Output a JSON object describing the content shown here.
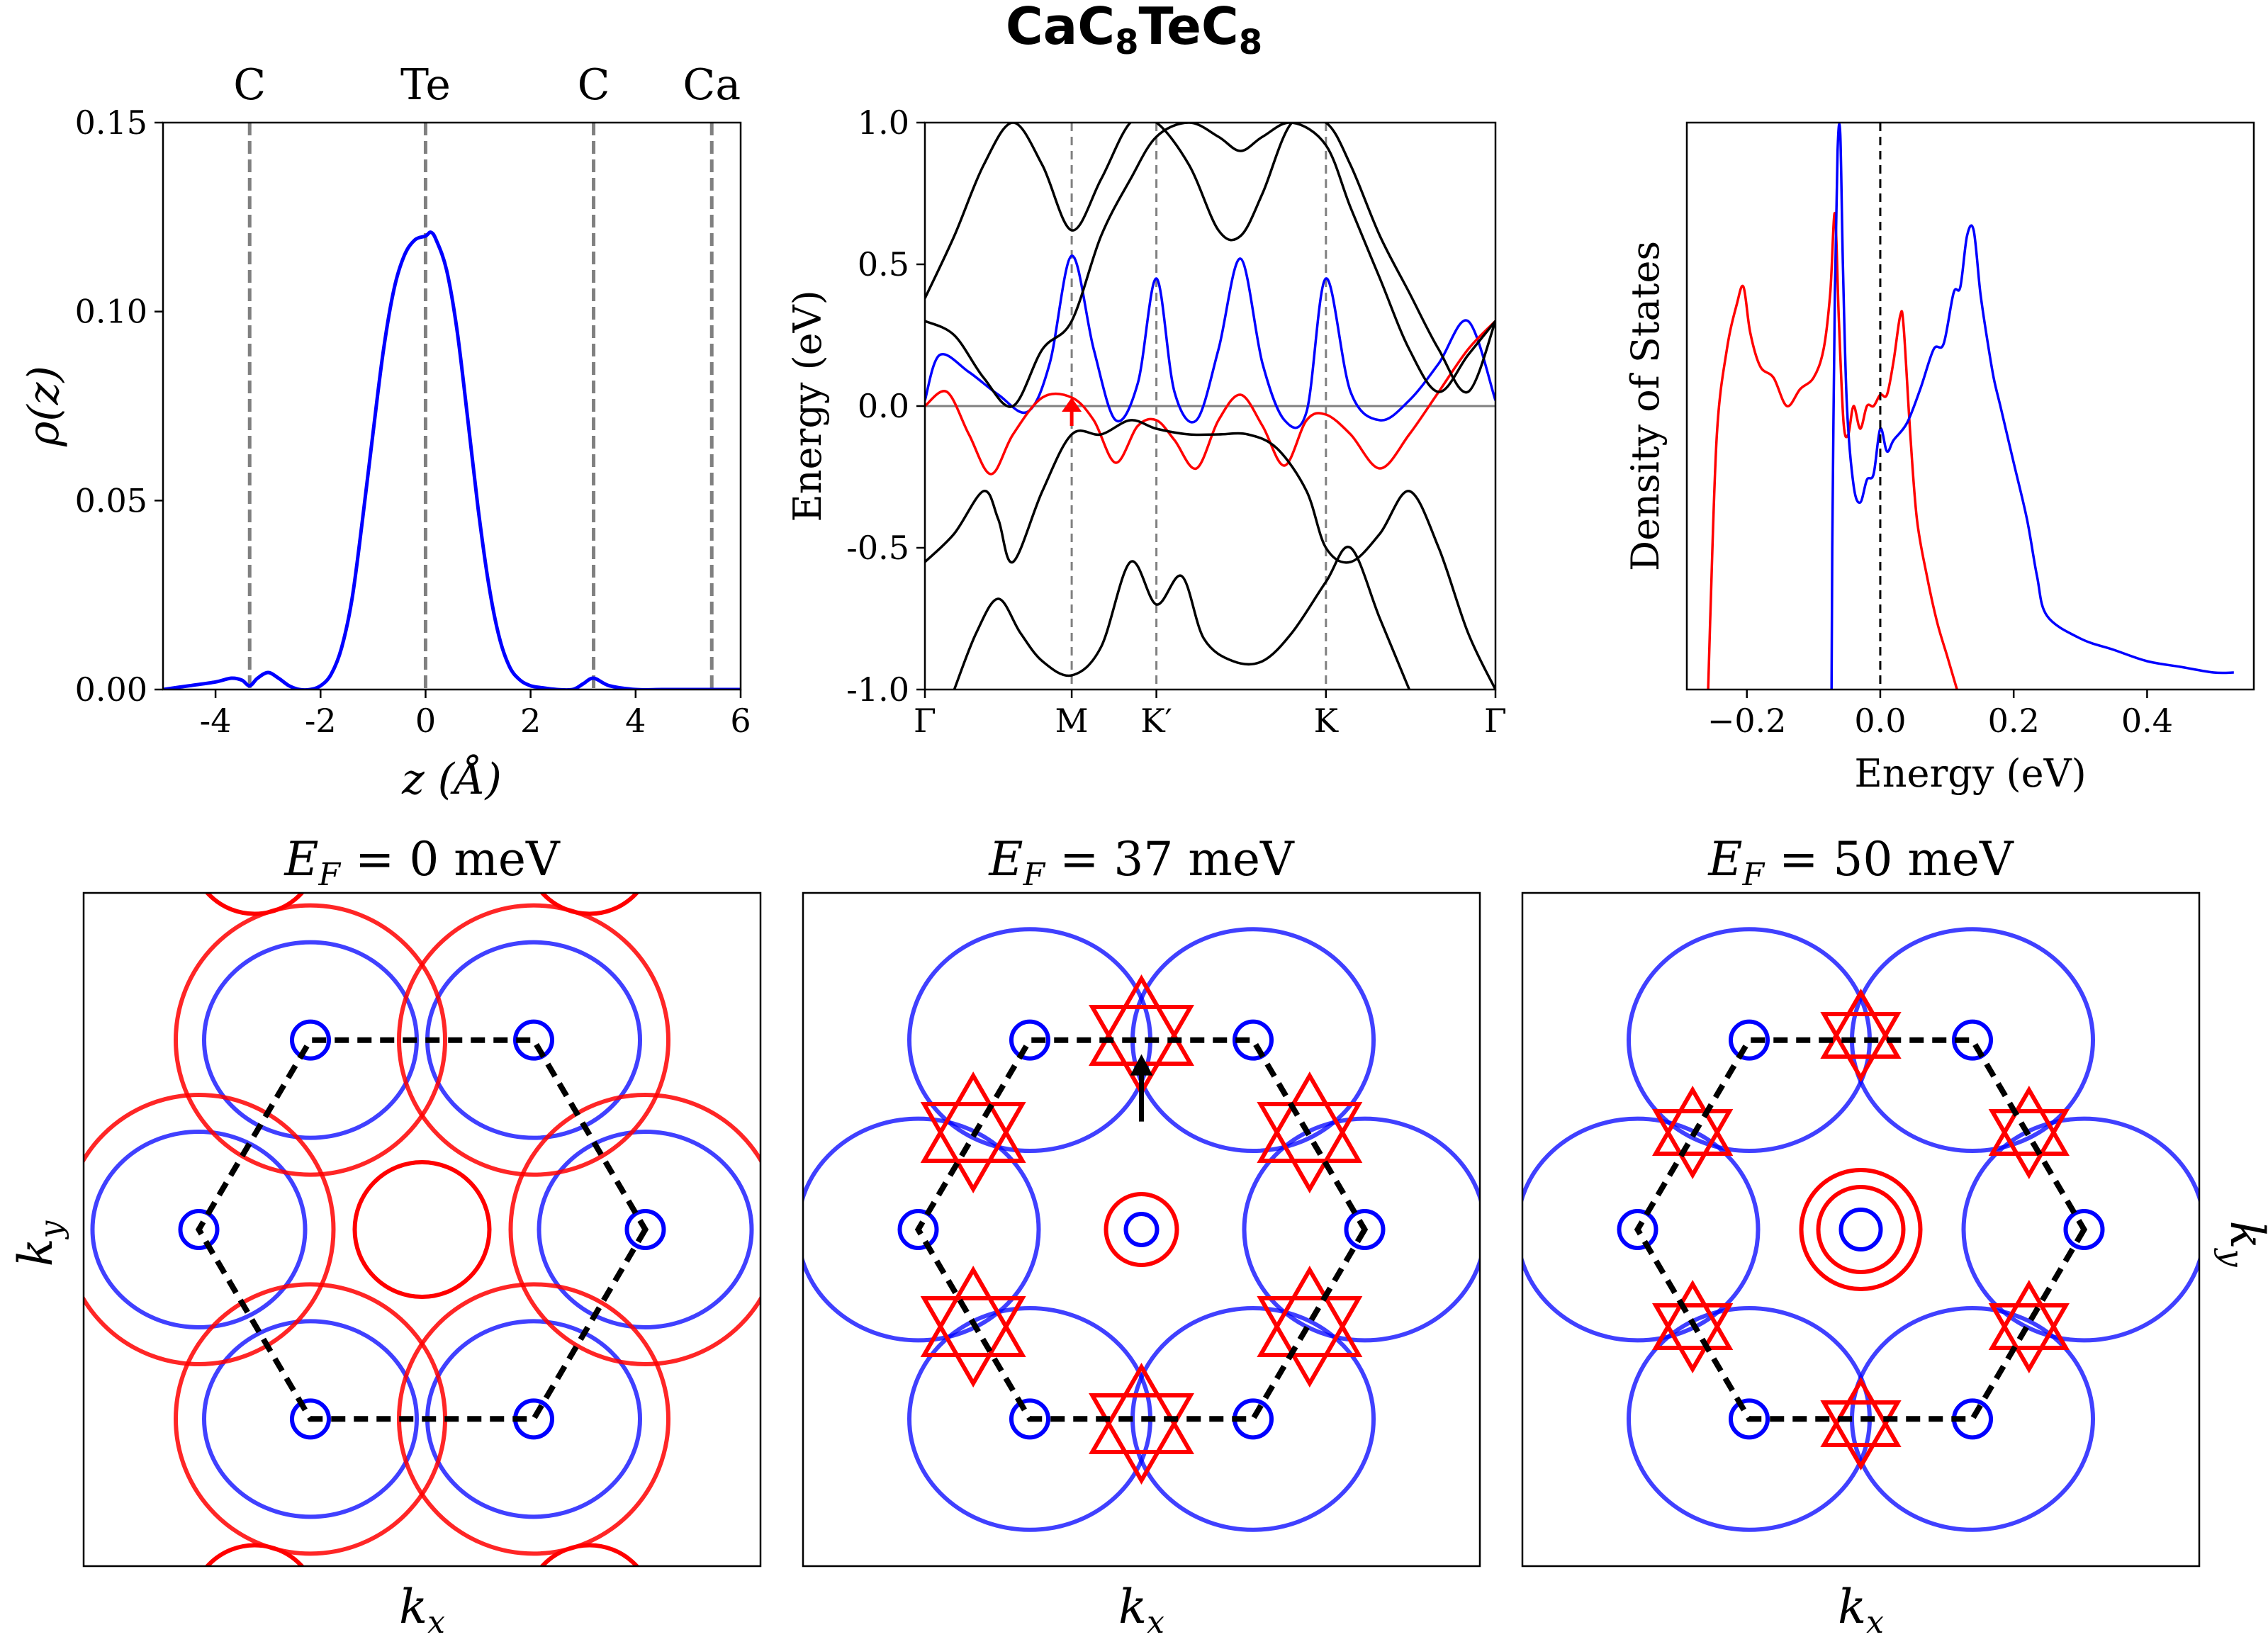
{
  "figure": {
    "title_main": "CaC",
    "title_sub1": "8",
    "title_mid": "TeC",
    "title_sub2": "8",
    "colors": {
      "red": "#ff0000",
      "blue": "#0000ff",
      "gray": "#808080",
      "black": "#000000"
    }
  },
  "chart_data": [
    {
      "id": "charge-density",
      "type": "line",
      "xlabel": "z (Å)",
      "ylabel": "ρ(z)",
      "xlim": [
        -5,
        6
      ],
      "ylim": [
        0,
        0.15
      ],
      "xticks": [
        -4,
        -2,
        0,
        2,
        4,
        6
      ],
      "xtick_labels": [
        "-4",
        "-2",
        "0",
        "2",
        "4",
        "6"
      ],
      "yticks": [
        0,
        0.05,
        0.1,
        0.15
      ],
      "ytick_labels": [
        "0.00",
        "0.05",
        "0.10",
        "0.15"
      ],
      "atoms": [
        {
          "label": "C",
          "z": -3.35
        },
        {
          "label": "Te",
          "z": 0.0
        },
        {
          "label": "C",
          "z": 3.2
        },
        {
          "label": "Ca",
          "z": 5.45
        }
      ],
      "series": [
        {
          "name": "ρ(z)",
          "color": "#0000ff",
          "x": [
            -5,
            -4.5,
            -4,
            -3.7,
            -3.5,
            -3.35,
            -3.2,
            -3.0,
            -2.8,
            -2.6,
            -2.4,
            -2.2,
            -2.0,
            -1.8,
            -1.6,
            -1.4,
            -1.2,
            -1.0,
            -0.8,
            -0.6,
            -0.4,
            -0.2,
            0,
            0.1,
            0.2,
            0.4,
            0.6,
            0.8,
            1.0,
            1.2,
            1.4,
            1.6,
            1.8,
            2.0,
            2.2,
            2.5,
            2.8,
            3.0,
            3.2,
            3.5,
            4.0,
            4.5,
            5.0,
            5.5,
            6.0
          ],
          "y": [
            0.0,
            0.001,
            0.002,
            0.003,
            0.0025,
            0.001,
            0.003,
            0.0045,
            0.003,
            0.001,
            0.0,
            0.0,
            0.001,
            0.004,
            0.011,
            0.024,
            0.045,
            0.068,
            0.09,
            0.106,
            0.115,
            0.119,
            0.12,
            0.121,
            0.119,
            0.111,
            0.095,
            0.072,
            0.048,
            0.028,
            0.014,
            0.006,
            0.0025,
            0.001,
            0.0005,
            0.0,
            0.0,
            0.0015,
            0.003,
            0.001,
            0.0,
            0.0,
            0.0,
            0.0,
            0.0
          ]
        }
      ]
    },
    {
      "id": "band-structure",
      "type": "line",
      "ylabel": "Energy (eV)",
      "ylim": [
        -1.0,
        1.0
      ],
      "yticks": [
        -1.0,
        -0.5,
        0.0,
        0.5,
        1.0
      ],
      "ytick_labels": [
        "-1.0",
        "-0.5",
        "0.0",
        "0.5",
        "1.0"
      ],
      "kpoints": [
        {
          "label": "Γ",
          "k": 0.0
        },
        {
          "label": "M",
          "k": 1.0
        },
        {
          "label": "K′",
          "k": 1.577
        },
        {
          "label": "K",
          "k": 2.732
        },
        {
          "label": "Γ",
          "k": 3.887
        }
      ],
      "fermi_level": 0.0,
      "series": [
        {
          "name": "blue band",
          "color": "#0000ff",
          "x": [
            0,
            0.1,
            0.3,
            0.5,
            0.7,
            0.85,
            1.0,
            1.15,
            1.3,
            1.45,
            1.577,
            1.7,
            1.85,
            2.0,
            2.15,
            2.3,
            2.45,
            2.6,
            2.732,
            2.9,
            3.1,
            3.3,
            3.5,
            3.7,
            3.887
          ],
          "y": [
            0.02,
            0.18,
            0.12,
            0.04,
            -0.02,
            0.15,
            0.53,
            0.2,
            -0.05,
            0.08,
            0.45,
            0.05,
            -0.05,
            0.2,
            0.52,
            0.15,
            -0.05,
            -0.02,
            0.45,
            0.05,
            -0.05,
            0.02,
            0.15,
            0.3,
            0.02
          ]
        },
        {
          "name": "red band",
          "color": "#ff0000",
          "x": [
            0,
            0.15,
            0.3,
            0.45,
            0.6,
            0.8,
            1.0,
            1.15,
            1.3,
            1.45,
            1.577,
            1.7,
            1.85,
            2.0,
            2.15,
            2.3,
            2.45,
            2.6,
            2.732,
            2.9,
            3.1,
            3.3,
            3.5,
            3.7,
            3.887
          ],
          "y": [
            0.0,
            0.05,
            -0.1,
            -0.24,
            -0.1,
            0.03,
            0.03,
            -0.05,
            -0.2,
            -0.07,
            -0.05,
            -0.12,
            -0.22,
            -0.05,
            0.04,
            -0.07,
            -0.21,
            -0.05,
            -0.03,
            -0.1,
            -0.22,
            -0.1,
            0.05,
            0.2,
            0.3
          ]
        },
        {
          "name": "black upper 1",
          "color": "#000000",
          "x": [
            0,
            0.2,
            0.4,
            0.6,
            0.8,
            1.0,
            1.2,
            1.4,
            1.577,
            1.8,
            2.0,
            2.15,
            2.3,
            2.5,
            2.732,
            2.9,
            3.1,
            3.3,
            3.5,
            3.7,
            3.887
          ],
          "y": [
            0.38,
            0.6,
            0.85,
            1.0,
            0.85,
            0.62,
            0.8,
            1.0,
            1.0,
            0.85,
            0.62,
            0.6,
            0.75,
            1.0,
            1.0,
            0.85,
            0.6,
            0.4,
            0.2,
            0.05,
            0.3
          ]
        },
        {
          "name": "black upper 2",
          "color": "#000000",
          "x": [
            0,
            0.2,
            0.4,
            0.6,
            0.8,
            1.0,
            1.2,
            1.4,
            1.577,
            1.8,
            2.0,
            2.15,
            2.3,
            2.5,
            2.732,
            2.9,
            3.1,
            3.3,
            3.5,
            3.7,
            3.887
          ],
          "y": [
            0.3,
            0.25,
            0.1,
            0.0,
            0.2,
            0.3,
            0.6,
            0.8,
            0.95,
            1.0,
            0.95,
            0.9,
            0.95,
            1.0,
            0.92,
            0.7,
            0.45,
            0.2,
            0.05,
            0.18,
            0.3
          ]
        },
        {
          "name": "black lower 1",
          "color": "#000000",
          "x": [
            0,
            0.2,
            0.4,
            0.5,
            0.6,
            0.8,
            1.0,
            1.2,
            1.4,
            1.577,
            1.8,
            2.0,
            2.2,
            2.4,
            2.6,
            2.732,
            2.9,
            3.1,
            3.3,
            3.5,
            3.7,
            3.887
          ],
          "y": [
            -0.55,
            -0.45,
            -0.3,
            -0.4,
            -0.55,
            -0.3,
            -0.1,
            -0.1,
            -0.05,
            -0.08,
            -0.1,
            -0.1,
            -0.1,
            -0.15,
            -0.3,
            -0.5,
            -0.55,
            -0.45,
            -0.3,
            -0.5,
            -0.8,
            -1.0
          ]
        },
        {
          "name": "black lower 2",
          "color": "#000000",
          "x": [
            0.2,
            0.35,
            0.5,
            0.65,
            0.8,
            1.0,
            1.2,
            1.4,
            1.577,
            1.75,
            1.9,
            2.1,
            2.3,
            2.5,
            2.732,
            2.9,
            3.1,
            3.3
          ],
          "y": [
            -1.0,
            -0.8,
            -0.68,
            -0.8,
            -0.9,
            -0.95,
            -0.85,
            -0.55,
            -0.7,
            -0.6,
            -0.82,
            -0.9,
            -0.9,
            -0.8,
            -0.62,
            -0.5,
            -0.75,
            -1.0
          ]
        }
      ]
    },
    {
      "id": "density-of-states",
      "type": "line",
      "xlabel": "Energy (eV)",
      "ylabel": "Density of States",
      "xlim": [
        -0.29,
        0.56
      ],
      "ylim": [
        0,
        1.0
      ],
      "xticks": [
        -0.2,
        0.0,
        0.2,
        0.4
      ],
      "xtick_labels": [
        "−0.2",
        "0.0",
        "0.2",
        "0.4"
      ],
      "fermi_level": 0.0,
      "series": [
        {
          "name": "red DOS",
          "color": "#ff0000",
          "x": [
            -0.258,
            -0.255,
            -0.245,
            -0.23,
            -0.215,
            -0.205,
            -0.195,
            -0.18,
            -0.16,
            -0.14,
            -0.12,
            -0.1,
            -0.085,
            -0.075,
            -0.068,
            -0.062,
            -0.055,
            -0.048,
            -0.04,
            -0.03,
            -0.02,
            -0.01,
            0.0,
            0.01,
            0.02,
            0.03,
            0.035,
            0.045,
            0.055,
            0.07,
            0.085,
            0.1,
            0.11,
            0.115
          ],
          "y": [
            0.0,
            0.12,
            0.45,
            0.6,
            0.68,
            0.71,
            0.63,
            0.57,
            0.55,
            0.5,
            0.53,
            0.55,
            0.6,
            0.7,
            0.84,
            0.65,
            0.47,
            0.45,
            0.5,
            0.46,
            0.5,
            0.5,
            0.52,
            0.52,
            0.58,
            0.66,
            0.64,
            0.45,
            0.3,
            0.2,
            0.12,
            0.06,
            0.02,
            0.0
          ]
        },
        {
          "name": "blue DOS",
          "color": "#0000ff",
          "x": [
            -0.073,
            -0.072,
            -0.068,
            -0.064,
            -0.06,
            -0.056,
            -0.05,
            -0.04,
            -0.03,
            -0.02,
            -0.01,
            0.0,
            0.01,
            0.02,
            0.04,
            0.06,
            0.08,
            0.095,
            0.11,
            0.12,
            0.13,
            0.14,
            0.15,
            0.16,
            0.17,
            0.18,
            0.2,
            0.22,
            0.235,
            0.25,
            0.3,
            0.35,
            0.4,
            0.45,
            0.5,
            0.53
          ],
          "y": [
            0.0,
            0.25,
            0.7,
            0.95,
            0.98,
            0.75,
            0.5,
            0.36,
            0.33,
            0.37,
            0.38,
            0.46,
            0.42,
            0.44,
            0.47,
            0.53,
            0.6,
            0.61,
            0.7,
            0.71,
            0.8,
            0.81,
            0.7,
            0.62,
            0.55,
            0.5,
            0.4,
            0.3,
            0.2,
            0.13,
            0.09,
            0.07,
            0.05,
            0.04,
            0.03,
            0.03
          ]
        }
      ]
    },
    {
      "id": "fermi-surface-0",
      "type": "scatter",
      "title_var": "E",
      "title_sub": "F",
      "title_value": " = 0 meV",
      "xlabel_var": "k",
      "xlabel_sub": "x",
      "ylabel_var": "k",
      "ylabel_sub": "y",
      "energy_meV": 0
    },
    {
      "id": "fermi-surface-37",
      "type": "scatter",
      "title_var": "E",
      "title_sub": "F",
      "title_value": " = 37 meV",
      "xlabel_var": "k",
      "xlabel_sub": "x",
      "energy_meV": 37
    },
    {
      "id": "fermi-surface-50",
      "type": "scatter",
      "title_var": "E",
      "title_sub": "F",
      "title_value": " = 50 meV",
      "xlabel_var": "k",
      "xlabel_sub": "x",
      "ylabel_var": "k",
      "ylabel_sub": "y",
      "energy_meV": 50
    }
  ]
}
